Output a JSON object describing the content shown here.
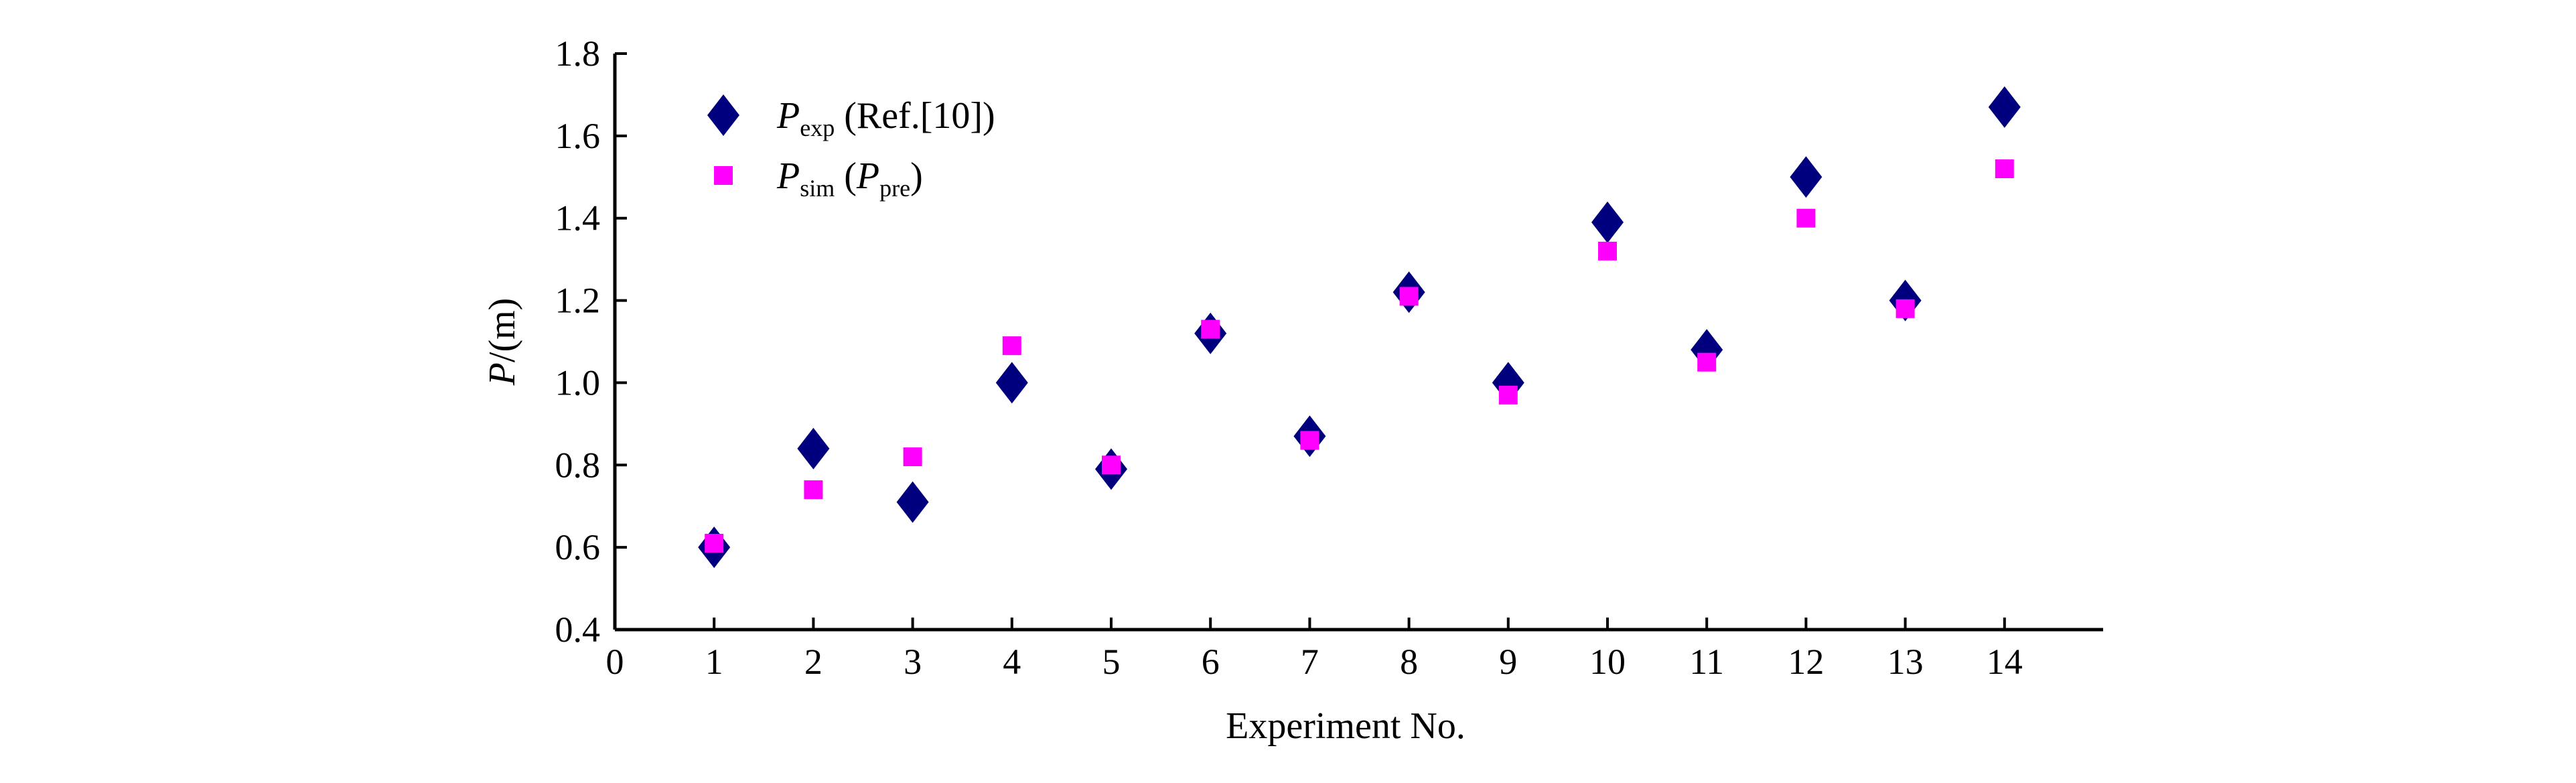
{
  "chart_data": {
    "type": "scatter",
    "xlabel": "Experiment No.",
    "ylabel": {
      "symbol": "P",
      "unit": "/(m)"
    },
    "xlim": [
      0,
      15
    ],
    "ylim": [
      0.4,
      1.8
    ],
    "x_ticks": [
      0,
      1,
      2,
      3,
      4,
      5,
      6,
      7,
      8,
      9,
      10,
      11,
      12,
      13,
      14
    ],
    "y_ticks": [
      "0.4",
      "0.6",
      "0.8",
      "1.0",
      "1.2",
      "1.4",
      "1.6",
      "1.8"
    ],
    "grid": false,
    "legend_position": "top-left",
    "series": [
      {
        "name": "P exp (Ref.[10])",
        "legend": {
          "symbol": "P",
          "sub": "exp",
          "suffix": " (Ref.[10])"
        },
        "marker": "diamond",
        "color": "#00007f",
        "x": [
          1,
          2,
          3,
          4,
          5,
          6,
          7,
          8,
          9,
          10,
          11,
          12,
          13,
          14
        ],
        "y": [
          0.6,
          0.84,
          0.71,
          1.0,
          0.79,
          1.12,
          0.87,
          1.22,
          1.0,
          1.39,
          1.08,
          1.5,
          1.2,
          1.67
        ]
      },
      {
        "name": "P sim (P pre)",
        "legend": {
          "symbol": "P",
          "sub": "sim",
          "mid": " (",
          "symbol2": "P",
          "sub2": "pre",
          "suffix": ")"
        },
        "marker": "square",
        "color": "#ff00ff",
        "x": [
          1,
          2,
          3,
          4,
          5,
          6,
          7,
          8,
          9,
          10,
          11,
          12,
          13,
          14
        ],
        "y": [
          0.61,
          0.74,
          0.82,
          1.09,
          0.8,
          1.13,
          0.86,
          1.21,
          0.97,
          1.32,
          1.05,
          1.4,
          1.18,
          1.52
        ]
      }
    ]
  }
}
